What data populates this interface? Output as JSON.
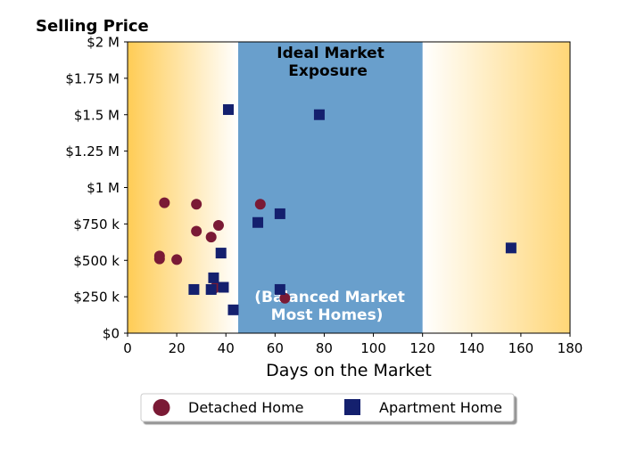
{
  "chart_data": {
    "type": "scatter",
    "ylabel": "Selling Price",
    "xlabel": "Days on the Market",
    "xlim": [
      0,
      180
    ],
    "ylim": [
      0,
      2000000
    ],
    "x_ticks": [
      0,
      20,
      40,
      60,
      80,
      100,
      120,
      140,
      160,
      180
    ],
    "x_tick_labels": [
      "0",
      "20",
      "40",
      "60",
      "80",
      "100",
      "120",
      "140",
      "160",
      "180"
    ],
    "y_ticks": [
      0,
      250000,
      500000,
      750000,
      1000000,
      1250000,
      1500000,
      1750000,
      2000000
    ],
    "y_tick_labels": [
      "$0",
      "$250 k",
      "$500 k",
      "$750 k",
      "$1 M",
      "$1.25 M",
      "$1.5 M",
      "$1.75 M",
      "$2 M"
    ],
    "grid": false,
    "legend_position": "bottom-center",
    "ideal_band": {
      "x_start": 45,
      "x_end": 120,
      "color": "#699fcc"
    },
    "band_annotations": {
      "top": [
        "Ideal Market",
        "Exposure"
      ],
      "bottom": [
        "(Balanced Market",
        "Most Homes)"
      ]
    },
    "gradient_color": "#ffcc55",
    "series": [
      {
        "name": "Detached Home",
        "marker": "circle",
        "color": "#7a1a35",
        "points": [
          [
            15,
            895000
          ],
          [
            28,
            885000
          ],
          [
            54,
            885000
          ],
          [
            37,
            740000
          ],
          [
            28,
            700000
          ],
          [
            34,
            660000
          ],
          [
            13,
            530000
          ],
          [
            13,
            510000
          ],
          [
            20,
            505000
          ],
          [
            35,
            305000
          ],
          [
            36,
            320000
          ],
          [
            64,
            240000
          ]
        ]
      },
      {
        "name": "Apartment Home",
        "marker": "square",
        "color": "#14206e",
        "points": [
          [
            41,
            1535000
          ],
          [
            78,
            1500000
          ],
          [
            62,
            820000
          ],
          [
            53,
            760000
          ],
          [
            38,
            550000
          ],
          [
            156,
            585000
          ],
          [
            35,
            380000
          ],
          [
            27,
            300000
          ],
          [
            34,
            300000
          ],
          [
            39,
            315000
          ],
          [
            62,
            300000
          ],
          [
            43,
            160000
          ]
        ]
      }
    ]
  }
}
